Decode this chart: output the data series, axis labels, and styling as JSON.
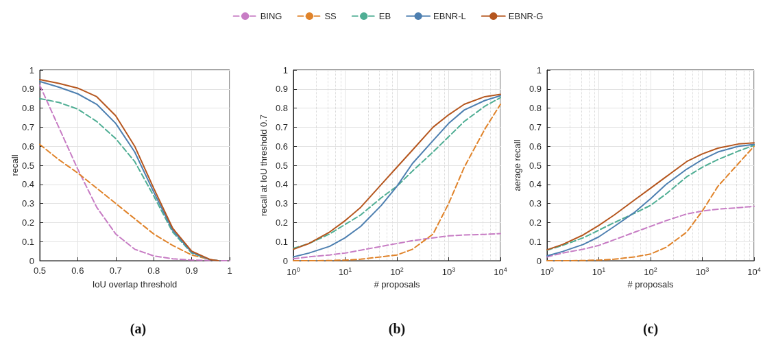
{
  "chart_data": [
    {
      "type": "line",
      "xlabel": "IoU overlap threshold",
      "ylabel": "recall",
      "annotations": [
        "(a)"
      ],
      "legend": "top",
      "grid": true,
      "marker": "none",
      "xlim": [
        0.5,
        1
      ],
      "xticks": [
        0.5,
        0.6,
        0.7,
        0.8,
        0.9,
        1
      ],
      "ylim": [
        0,
        1
      ],
      "yticks": [
        0,
        0.1,
        0.2,
        0.3,
        0.4,
        0.5,
        0.6,
        0.7,
        0.8,
        0.9,
        1
      ],
      "x": [
        0.5,
        0.55,
        0.6,
        0.65,
        0.7,
        0.75,
        0.8,
        0.85,
        0.9,
        0.95,
        0.97,
        1
      ],
      "series": [
        {
          "name": "BING",
          "color": "#c77cc4",
          "line_style": "dashed",
          "values": [
            0.92,
            0.7,
            0.48,
            0.28,
            0.14,
            0.06,
            0.025,
            0.01,
            0.003,
            0.001,
            0,
            0
          ]
        },
        {
          "name": "SS",
          "color": "#e0832a",
          "line_style": "dashed",
          "values": [
            0.61,
            0.53,
            0.46,
            0.38,
            0.3,
            0.22,
            0.14,
            0.08,
            0.03,
            0.005,
            0,
            null
          ]
        },
        {
          "name": "EB",
          "color": "#4fae94",
          "line_style": "dashed",
          "values": [
            0.85,
            0.83,
            0.795,
            0.73,
            0.64,
            0.52,
            0.34,
            0.15,
            0.04,
            0.004,
            0,
            null
          ]
        },
        {
          "name": "EBNR-L",
          "color": "#4d7fb0",
          "line_style": "solid",
          "values": [
            0.94,
            0.91,
            0.875,
            0.82,
            0.72,
            0.57,
            0.36,
            0.16,
            0.045,
            0.004,
            0,
            null
          ]
        },
        {
          "name": "EBNR-G",
          "color": "#b5561e",
          "line_style": "solid",
          "values": [
            0.95,
            0.93,
            0.905,
            0.86,
            0.76,
            0.6,
            0.38,
            0.17,
            0.05,
            0.005,
            0,
            null
          ]
        }
      ]
    },
    {
      "type": "line",
      "xlabel": "# proposals",
      "ylabel": "recall at IoU threshold 0.7",
      "annotations": [
        "(b)"
      ],
      "grid": true,
      "marker": "none",
      "log": "x",
      "xlim": [
        1,
        10000
      ],
      "xticks": [
        {
          "value": 1,
          "label": "10$^{0}$"
        },
        {
          "value": 10,
          "label": "10$^{1}$"
        },
        {
          "value": 100,
          "label": "10$^{2}$"
        },
        {
          "value": 1000,
          "label": "10$^{3}$"
        },
        {
          "value": 10000,
          "label": "10$^{4}$"
        }
      ],
      "ylim": [
        0,
        1
      ],
      "yticks": [
        0,
        0.1,
        0.2,
        0.3,
        0.4,
        0.5,
        0.6,
        0.7,
        0.8,
        0.9,
        1
      ],
      "x": [
        1,
        2,
        5,
        10,
        20,
        50,
        100,
        200,
        500,
        1000,
        2000,
        5000,
        10000
      ],
      "series": [
        {
          "color": "#c77cc4",
          "line_style": "dashed",
          "values": [
            0.01,
            0.02,
            0.03,
            0.04,
            0.055,
            0.075,
            0.09,
            0.105,
            0.12,
            0.13,
            0.135,
            0.138,
            0.142
          ]
        },
        {
          "color": "#e0832a",
          "line_style": "dashed",
          "values": [
            0,
            0,
            0.001,
            0.003,
            0.008,
            0.02,
            0.03,
            0.06,
            0.14,
            0.3,
            0.49,
            0.69,
            0.82
          ]
        },
        {
          "color": "#4fae94",
          "line_style": "dashed",
          "values": [
            0.065,
            0.09,
            0.14,
            0.19,
            0.24,
            0.33,
            0.39,
            0.47,
            0.57,
            0.65,
            0.73,
            0.81,
            0.855
          ]
        },
        {
          "color": "#4d7fb0",
          "line_style": "solid",
          "values": [
            0.02,
            0.04,
            0.075,
            0.12,
            0.18,
            0.29,
            0.39,
            0.51,
            0.63,
            0.72,
            0.79,
            0.84,
            0.865
          ]
        },
        {
          "color": "#b5561e",
          "line_style": "solid",
          "values": [
            0.06,
            0.09,
            0.15,
            0.21,
            0.28,
            0.4,
            0.49,
            0.58,
            0.7,
            0.765,
            0.82,
            0.86,
            0.872
          ]
        }
      ]
    },
    {
      "type": "line",
      "xlabel": "# proposals",
      "ylabel": "aerage recall",
      "annotations": [
        "(c)"
      ],
      "grid": true,
      "marker": "none",
      "log": "x",
      "xlim": [
        1,
        10000
      ],
      "xticks": [
        {
          "value": 1,
          "label": "10$^{0}$"
        },
        {
          "value": 10,
          "label": "10$^{1}$"
        },
        {
          "value": 100,
          "label": "10$^{2}$"
        },
        {
          "value": 1000,
          "label": "10$^{3}$"
        },
        {
          "value": 10000,
          "label": "10$^{4}$"
        }
      ],
      "ylim": [
        0,
        1
      ],
      "yticks": [
        0,
        0.1,
        0.2,
        0.3,
        0.4,
        0.5,
        0.6,
        0.7,
        0.8,
        0.9,
        1
      ],
      "x": [
        1,
        2,
        5,
        10,
        20,
        50,
        100,
        200,
        500,
        1000,
        2000,
        5000,
        10000
      ],
      "series": [
        {
          "color": "#c77cc4",
          "line_style": "dashed",
          "values": [
            0.02,
            0.04,
            0.06,
            0.08,
            0.11,
            0.15,
            0.18,
            0.21,
            0.245,
            0.26,
            0.27,
            0.278,
            0.285
          ]
        },
        {
          "color": "#e0832a",
          "line_style": "dashed",
          "values": [
            0,
            0,
            0.001,
            0.003,
            0.008,
            0.02,
            0.035,
            0.07,
            0.15,
            0.26,
            0.39,
            0.51,
            0.6
          ]
        },
        {
          "color": "#4fae94",
          "line_style": "dashed",
          "values": [
            0.055,
            0.08,
            0.12,
            0.16,
            0.2,
            0.25,
            0.29,
            0.35,
            0.44,
            0.49,
            0.53,
            0.575,
            0.605
          ]
        },
        {
          "color": "#4d7fb0",
          "line_style": "solid",
          "values": [
            0.025,
            0.048,
            0.085,
            0.125,
            0.18,
            0.255,
            0.325,
            0.4,
            0.48,
            0.53,
            0.57,
            0.6,
            0.61
          ]
        },
        {
          "color": "#b5561e",
          "line_style": "solid",
          "values": [
            0.057,
            0.085,
            0.135,
            0.185,
            0.24,
            0.32,
            0.38,
            0.44,
            0.52,
            0.56,
            0.59,
            0.612,
            0.618
          ]
        }
      ]
    }
  ]
}
